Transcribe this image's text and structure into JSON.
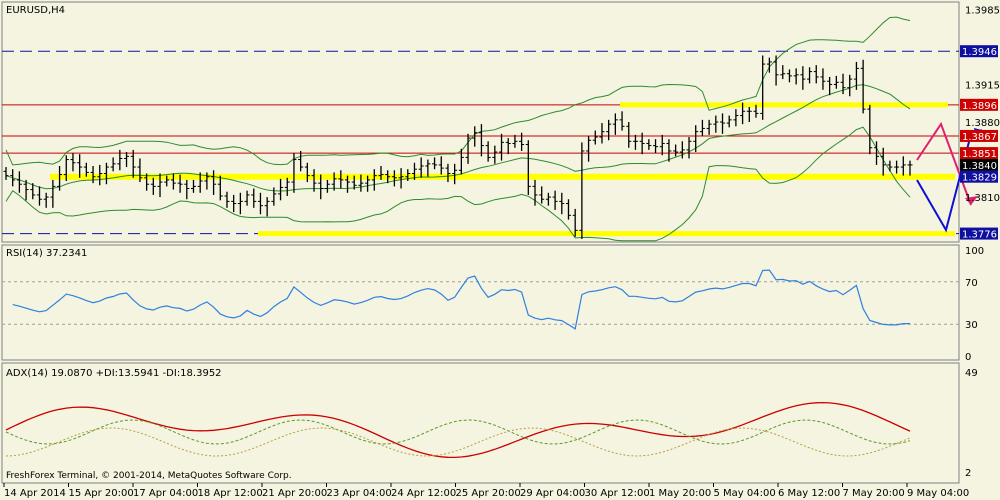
{
  "chart_data": [
    {
      "type": "candlestick",
      "title": "EURUSD,H4",
      "symbol": "EURUSD",
      "timeframe": "H4",
      "ylim": [
        1.377,
        1.399
      ],
      "y_ticks": [
        1.3985,
        1.3915,
        1.388,
        1.381
      ],
      "price_labels": [
        {
          "value": 1.3946,
          "text": "1.3946",
          "style": "blue-dashed"
        },
        {
          "value": 1.3896,
          "text": "1.3896",
          "style": "red"
        },
        {
          "value": 1.3867,
          "text": "1.3867",
          "style": "red"
        },
        {
          "value": 1.3851,
          "text": "1.3851",
          "style": "red"
        },
        {
          "value": 1.384,
          "text": "1.3840",
          "style": "current"
        },
        {
          "value": 1.3829,
          "text": "1.3829",
          "style": "yellow"
        },
        {
          "value": 1.3776,
          "text": "1.3776",
          "style": "blue-dashed"
        }
      ],
      "levels": [
        {
          "value": 1.3946,
          "kind": "resistance",
          "color": "#1010a0"
        },
        {
          "value": 1.3896,
          "kind": "resistance",
          "color": "#cc0000"
        },
        {
          "value": 1.3867,
          "kind": "resistance",
          "color": "#cc0000"
        },
        {
          "value": 1.3851,
          "kind": "resistance",
          "color": "#cc0000"
        },
        {
          "value": 1.3829,
          "kind": "support",
          "color": "#ffff00"
        },
        {
          "value": 1.3776,
          "kind": "support",
          "color": "#1010a0"
        }
      ],
      "close_series": [
        1.383,
        1.3826,
        1.3822,
        1.3817,
        1.3812,
        1.3808,
        1.381,
        1.382,
        1.3831,
        1.3845,
        1.3842,
        1.3838,
        1.3833,
        1.3829,
        1.3832,
        1.3838,
        1.3841,
        1.3846,
        1.3848,
        1.3838,
        1.3828,
        1.3822,
        1.382,
        1.3824,
        1.3826,
        1.3823,
        1.3822,
        1.3818,
        1.382,
        1.3825,
        1.3829,
        1.3822,
        1.3811,
        1.3806,
        1.3804,
        1.3806,
        1.3812,
        1.3806,
        1.3802,
        1.3806,
        1.3813,
        1.3819,
        1.3824,
        1.3845,
        1.3838,
        1.383,
        1.3823,
        1.3818,
        1.3822,
        1.3827,
        1.3826,
        1.3824,
        1.3821,
        1.3823,
        1.3826,
        1.383,
        1.3831,
        1.3829,
        1.3828,
        1.3829,
        1.3832,
        1.3836,
        1.3839,
        1.3841,
        1.384,
        1.3837,
        1.3832,
        1.3835,
        1.3847,
        1.3865,
        1.387,
        1.3858,
        1.3847,
        1.3852,
        1.3861,
        1.386,
        1.3862,
        1.3859,
        1.382,
        1.3812,
        1.3808,
        1.381,
        1.3806,
        1.3804,
        1.3793,
        1.3779,
        1.3853,
        1.3863,
        1.3866,
        1.3871,
        1.3878,
        1.3882,
        1.3876,
        1.3862,
        1.3862,
        1.386,
        1.3858,
        1.3857,
        1.386,
        1.3853,
        1.3852,
        1.3854,
        1.3862,
        1.3871,
        1.3874,
        1.3878,
        1.388,
        1.3879,
        1.3882,
        1.3886,
        1.389,
        1.389,
        1.3888,
        1.3934,
        1.3936,
        1.3924,
        1.3925,
        1.3923,
        1.3924,
        1.392,
        1.3927,
        1.3922,
        1.3918,
        1.3915,
        1.3917,
        1.3912,
        1.392,
        1.393,
        1.3892,
        1.3856,
        1.3848,
        1.384,
        1.3838,
        1.3838,
        1.384,
        1.384
      ]
    },
    {
      "type": "line",
      "title": "RSI(14) 37.2341",
      "ylim": [
        0,
        100
      ],
      "y_ticks": [
        100,
        70,
        30,
        0
      ],
      "levels": [
        70,
        30
      ]
    },
    {
      "type": "line",
      "title": "ADX(14) 19.0870 +DI:13.5941 -DI:18.3952",
      "y_ticks": [
        49,
        2
      ],
      "series": [
        {
          "name": "ADX",
          "color": "#cc0000"
        },
        {
          "name": "+DI",
          "color": "#5a9a2a"
        },
        {
          "name": "-DI",
          "color": "#b8a040"
        }
      ]
    }
  ],
  "x_ticks": [
    "14 Apr 2014",
    "15 Apr 20:00",
    "17 Apr 04:00",
    "18 Apr 12:00",
    "21 Apr 20:00",
    "23 Apr 04:00",
    "24 Apr 12:00",
    "25 Apr 20:00",
    "29 Apr 04:00",
    "30 Apr 12:00",
    "1 May 20:00",
    "5 May 04:00",
    "6 May 12:00",
    "7 May 20:00",
    "9 May 04:00"
  ],
  "footer": "FreshForex Terminal, © 2001-2014, MetaQuotes Software Corp.",
  "colors": {
    "background": "#f4f4e0",
    "candle": "#000000",
    "bands": "#2e8b2e",
    "rsi": "#3080e0",
    "adx": "#cc0000"
  }
}
